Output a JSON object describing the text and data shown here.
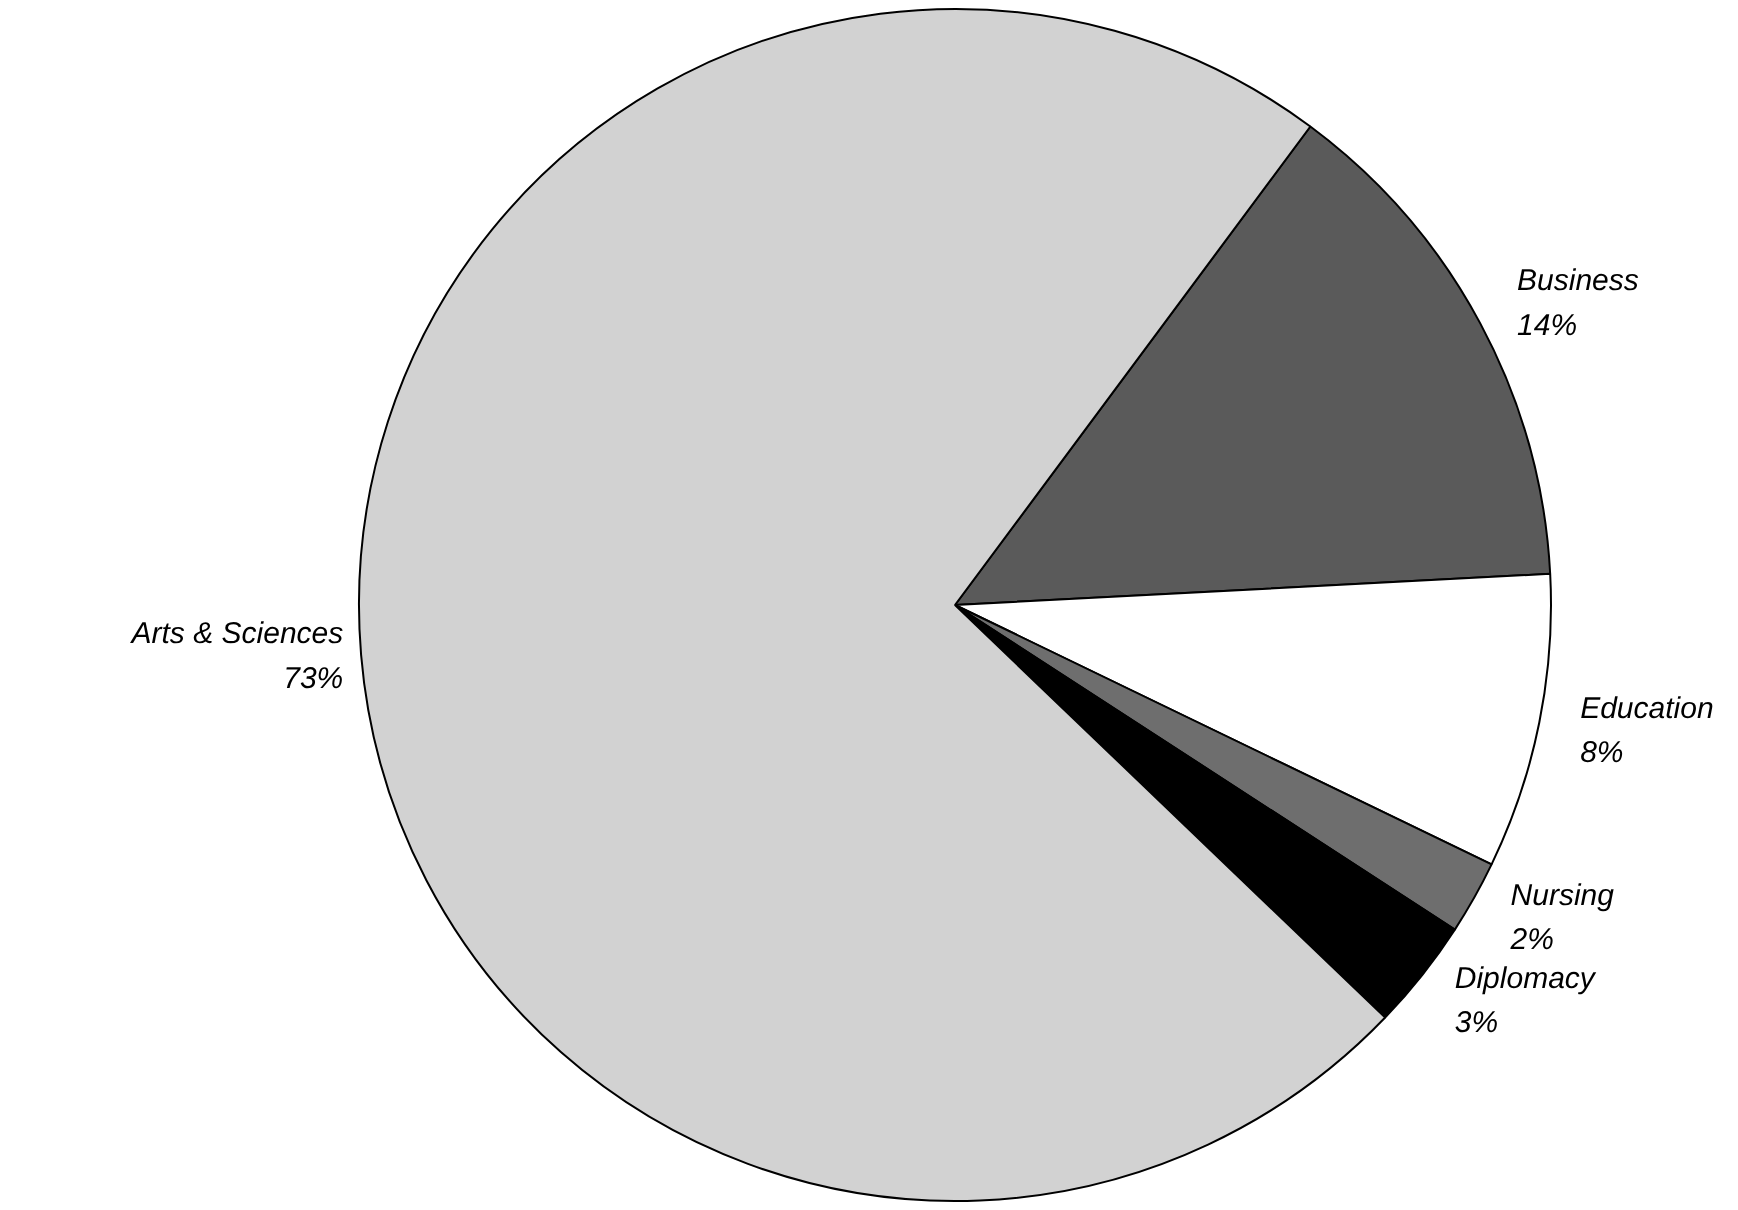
{
  "chart_data": {
    "type": "pie",
    "categories": [
      "Business",
      "Education",
      "Nursing",
      "Diplomacy",
      "Arts & Sciences"
    ],
    "values": [
      14,
      8,
      2,
      3,
      73
    ],
    "value_labels": [
      "14%",
      "8%",
      "2%",
      "3%",
      "73%"
    ],
    "colors": [
      "#5a5a5a",
      "#ffffff",
      "#6e6e6e",
      "#000000",
      "#d2d2d2"
    ],
    "legend": false
  }
}
